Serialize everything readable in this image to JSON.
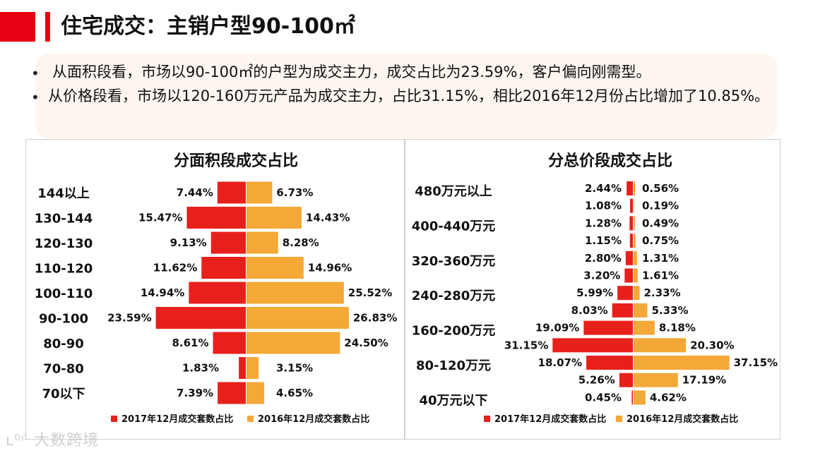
{
  "header": {
    "title": "住宅成交：主销户型90-100㎡"
  },
  "summary": {
    "bullet_symbol": "•",
    "bullets": [
      "从面积段看，市场以90-100㎡的户型为成交主力，成交占比为23.59%，客户偏向刚需型。",
      "从价格段看，市场以120-160万元产品为成交主力，占比31.15%，相比2016年12月份占比增加了10.85%。"
    ]
  },
  "colors": {
    "accent_red": "#e60012",
    "series_2017": "#e8201c",
    "series_2016": "#f3a838"
  },
  "watermark": "大数跨境",
  "chart_data": [
    {
      "type": "bar",
      "orientation": "horizontal-butterfly",
      "title": "分面积段成交占比",
      "categories": [
        "144以上",
        "130-144",
        "120-130",
        "110-120",
        "100-110",
        "90-100",
        "80-90",
        "70-80",
        "70以下"
      ],
      "series": [
        {
          "name": "2017年12月成交套数占比",
          "values": [
            7.44,
            15.47,
            9.13,
            11.62,
            14.94,
            23.59,
            8.61,
            1.83,
            7.39
          ],
          "labels": [
            "7.44%",
            "15.47%",
            "9.13%",
            "11.62%",
            "14.94%",
            "23.59%",
            "8.61%",
            "1.83%",
            "7.39%"
          ]
        },
        {
          "name": "2016年12月成交套数占比",
          "values": [
            6.73,
            14.43,
            8.28,
            14.96,
            25.52,
            26.83,
            24.5,
            3.15,
            4.65
          ],
          "labels": [
            "6.73%",
            "14.43%",
            "8.28%",
            "14.96%",
            "25.52%",
            "26.83%",
            "24.50%",
            "3.15%",
            "4.65%"
          ]
        }
      ],
      "legend": "bottom"
    },
    {
      "type": "bar",
      "orientation": "horizontal-butterfly",
      "title": "分总价段成交占比",
      "categories": [
        "480万元以上",
        "",
        "400-440万元",
        "",
        "320-360万元",
        "",
        "240-280万元",
        "",
        "160-200万元",
        "",
        "80-120万元",
        "",
        "40万元以下"
      ],
      "series": [
        {
          "name": "2017年12月成交套数占比",
          "values": [
            2.44,
            1.08,
            1.28,
            1.15,
            2.8,
            3.2,
            5.99,
            8.03,
            19.09,
            31.15,
            18.07,
            5.26,
            0.45
          ],
          "labels": [
            "2.44%",
            "1.08%",
            "1.28%",
            "1.15%",
            "2.80%",
            "3.20%",
            "5.99%",
            "8.03%",
            "19.09%",
            "31.15%",
            "18.07%",
            "5.26%",
            "0.45%"
          ]
        },
        {
          "name": "2016年12月成交套数占比",
          "values": [
            0.56,
            0.19,
            0.49,
            0.75,
            1.31,
            1.61,
            2.33,
            5.33,
            8.18,
            20.3,
            37.15,
            17.19,
            4.62
          ],
          "labels": [
            "0.56%",
            "0.19%",
            "0.49%",
            "0.75%",
            "1.31%",
            "1.61%",
            "2.33%",
            "5.33%",
            "8.18%",
            "20.30%",
            "37.15%",
            "17.19%",
            "4.62%"
          ]
        }
      ],
      "legend": "bottom"
    }
  ]
}
